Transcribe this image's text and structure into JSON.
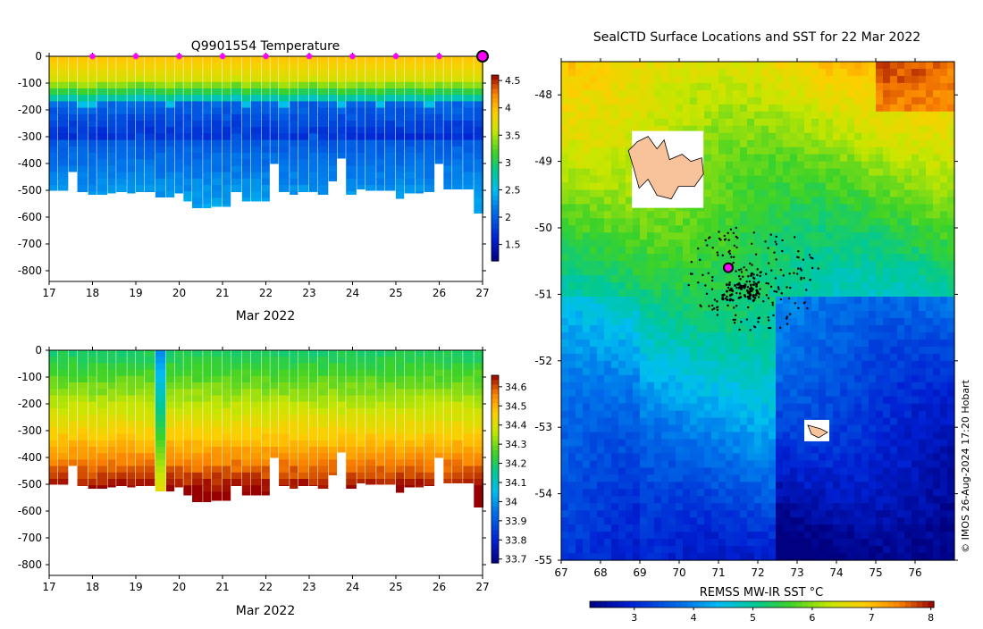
{
  "chart_data": [
    {
      "type": "heatmap",
      "title": "Q9901554  Temperature",
      "xlabel": "Mar 2022",
      "xlim": [
        17,
        27
      ],
      "ylim": [
        -840,
        0
      ],
      "x_ticks": [
        "17",
        "18",
        "19",
        "20",
        "21",
        "22",
        "23",
        "24",
        "25",
        "26",
        "27"
      ],
      "y_ticks": [
        "0",
        "-100",
        "-200",
        "-300",
        "-400",
        "-500",
        "-600",
        "-700",
        "-800"
      ],
      "colorbar_ticks": [
        "4.5",
        "4",
        "3.5",
        "3",
        "2.5",
        "2",
        "1.5"
      ],
      "colorbar_range": [
        1.2,
        4.6
      ],
      "profile_times": [
        17.0,
        17.2,
        17.45,
        17.65,
        17.9,
        18.1,
        18.35,
        18.55,
        18.8,
        19.0,
        19.2,
        19.45,
        19.7,
        19.9,
        20.1,
        20.3,
        20.55,
        20.75,
        21.0,
        21.2,
        21.45,
        21.65,
        21.9,
        22.1,
        22.3,
        22.55,
        22.75,
        23.0,
        23.2,
        23.45,
        23.65,
        23.85,
        24.1,
        24.3,
        24.55,
        24.75,
        25.0,
        25.2,
        25.45,
        25.65,
        25.9,
        26.1,
        26.3,
        26.55,
        26.8,
        27.0
      ],
      "profile_max_depth": [
        500,
        500,
        430,
        505,
        515,
        515,
        510,
        505,
        510,
        505,
        505,
        525,
        525,
        510,
        540,
        565,
        565,
        560,
        560,
        505,
        540,
        540,
        540,
        400,
        505,
        515,
        505,
        505,
        515,
        465,
        380,
        515,
        495,
        500,
        500,
        500,
        530,
        510,
        510,
        505,
        400,
        495,
        495,
        495,
        585,
        585
      ],
      "thermocline_depth": [
        180,
        180,
        175,
        185,
        185,
        175,
        180,
        180,
        175,
        170,
        175,
        180,
        185,
        175,
        180,
        175,
        180,
        175,
        180,
        170,
        185,
        175,
        180,
        175,
        185,
        180,
        175,
        170,
        180,
        175,
        185,
        180,
        175,
        180,
        185,
        175,
        180,
        175,
        180,
        185,
        175,
        180,
        175,
        180,
        180,
        175
      ],
      "surface_markers": [
        18,
        19,
        20,
        21,
        22,
        23,
        24,
        25,
        26
      ],
      "latest_marker": 27
    },
    {
      "type": "heatmap",
      "title": "",
      "xlabel": "Mar 2022",
      "xlim": [
        17,
        27
      ],
      "ylim": [
        -840,
        0
      ],
      "x_ticks": [
        "17",
        "18",
        "19",
        "20",
        "21",
        "22",
        "23",
        "24",
        "25",
        "26",
        "27"
      ],
      "y_ticks": [
        "0",
        "-100",
        "-200",
        "-300",
        "-400",
        "-500",
        "-600",
        "-700",
        "-800"
      ],
      "colorbar_ticks": [
        "34.6",
        "34.5",
        "34.4",
        "34.3",
        "34.2",
        "34.1",
        "34",
        "33.9",
        "33.8",
        "33.7"
      ],
      "colorbar_range": [
        33.68,
        34.66
      ],
      "anomaly_profile_time": 19.45
    },
    {
      "type": "heatmap",
      "title": "SealCTD Surface Locations and SST for 22 Mar 2022",
      "xlabel": "REMSS MW-IR SST °C",
      "xlim": [
        67,
        77
      ],
      "ylim": [
        -55,
        -47.5
      ],
      "x_ticks": [
        "67",
        "68",
        "69",
        "70",
        "71",
        "72",
        "73",
        "74",
        "75",
        "76"
      ],
      "y_ticks": [
        "-48",
        "-49",
        "-50",
        "-51",
        "-52",
        "-53",
        "-54",
        "-55"
      ],
      "colorbar_ticks": [
        "3",
        "4",
        "5",
        "6",
        "7",
        "8"
      ],
      "colorbar_range": [
        2.25,
        8.05
      ],
      "seal_track_center": [
        71.9,
        -50.75
      ],
      "current_position": [
        71.25,
        -50.6
      ],
      "island_main_center": [
        69.8,
        -49.35
      ],
      "island_small_center": [
        73.5,
        -53.05
      ]
    }
  ],
  "credit": "© IMOS 26-Aug-2024 17:20 Hobart"
}
